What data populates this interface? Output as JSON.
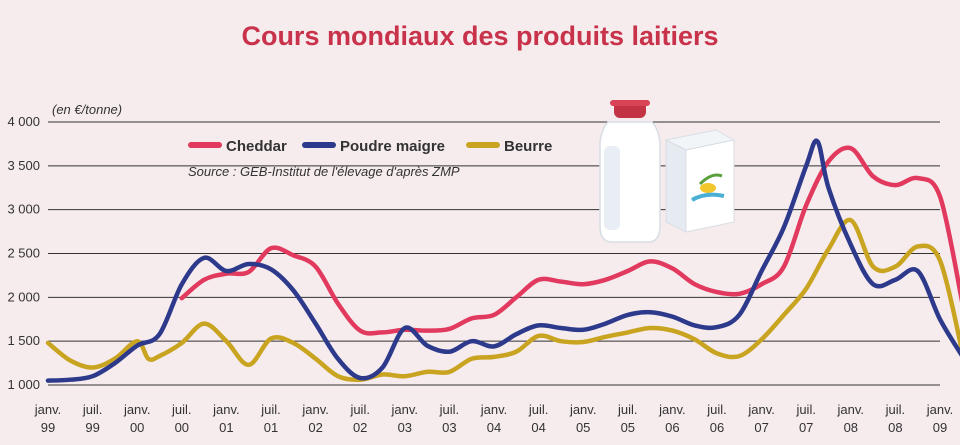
{
  "chart_data": {
    "type": "line",
    "title": "Cours mondiaux des produits laitiers",
    "unit_label": "(en €/tonne)",
    "source": "Source : GEB-Institut de l'élevage d'après ZMP",
    "ylim": [
      1000,
      4000
    ],
    "yticks": [
      {
        "value": 1000,
        "label": "1 000"
      },
      {
        "value": 1500,
        "label": "1 500"
      },
      {
        "value": 2000,
        "label": "2 000"
      },
      {
        "value": 2500,
        "label": "2 500"
      },
      {
        "value": 3000,
        "label": "3 000"
      },
      {
        "value": 3500,
        "label": "3 500"
      },
      {
        "value": 4000,
        "label": "4 000"
      }
    ],
    "xticks": [
      {
        "line1": "janv.",
        "line2": "99"
      },
      {
        "line1": "juil.",
        "line2": "99"
      },
      {
        "line1": "janv.",
        "line2": "00"
      },
      {
        "line1": "juil.",
        "line2": "00"
      },
      {
        "line1": "janv.",
        "line2": "01"
      },
      {
        "line1": "juil.",
        "line2": "01"
      },
      {
        "line1": "janv.",
        "line2": "02"
      },
      {
        "line1": "juil.",
        "line2": "02"
      },
      {
        "line1": "janv.",
        "line2": "03"
      },
      {
        "line1": "juil.",
        "line2": "03"
      },
      {
        "line1": "janv.",
        "line2": "04"
      },
      {
        "line1": "juil.",
        "line2": "04"
      },
      {
        "line1": "janv.",
        "line2": "05"
      },
      {
        "line1": "juil.",
        "line2": "05"
      },
      {
        "line1": "janv.",
        "line2": "06"
      },
      {
        "line1": "juil.",
        "line2": "06"
      },
      {
        "line1": "janv.",
        "line2": "07"
      },
      {
        "line1": "juil.",
        "line2": "07"
      },
      {
        "line1": "janv.",
        "line2": "08"
      },
      {
        "line1": "juil.",
        "line2": "08"
      },
      {
        "line1": "janv.",
        "line2": "09"
      }
    ],
    "grid": "horizontal",
    "legend_position": "top-left",
    "series": [
      {
        "name": "Cheddar",
        "color": "#e23a5e",
        "points": [
          [
            3.0,
            1990
          ],
          [
            3.5,
            2200
          ],
          [
            4.0,
            2270
          ],
          [
            4.5,
            2290
          ],
          [
            5.0,
            2560
          ],
          [
            5.5,
            2480
          ],
          [
            6.0,
            2350
          ],
          [
            6.5,
            1930
          ],
          [
            7.0,
            1620
          ],
          [
            7.5,
            1600
          ],
          [
            8.0,
            1630
          ],
          [
            8.5,
            1620
          ],
          [
            9.0,
            1640
          ],
          [
            9.5,
            1760
          ],
          [
            10.0,
            1800
          ],
          [
            10.5,
            2000
          ],
          [
            11.0,
            2200
          ],
          [
            11.5,
            2180
          ],
          [
            12.0,
            2150
          ],
          [
            12.5,
            2200
          ],
          [
            13.0,
            2300
          ],
          [
            13.5,
            2410
          ],
          [
            14.0,
            2330
          ],
          [
            14.5,
            2150
          ],
          [
            15.0,
            2060
          ],
          [
            15.5,
            2040
          ],
          [
            16.0,
            2150
          ],
          [
            16.5,
            2350
          ],
          [
            17.0,
            3050
          ],
          [
            17.5,
            3550
          ],
          [
            18.0,
            3700
          ],
          [
            18.5,
            3380
          ],
          [
            19.0,
            3280
          ],
          [
            19.5,
            3360
          ],
          [
            20.0,
            3150
          ],
          [
            20.5,
            1940
          ]
        ]
      },
      {
        "name": "Poudre maigre",
        "color": "#2d3a8c",
        "points": [
          [
            0.0,
            1050
          ],
          [
            0.5,
            1060
          ],
          [
            1.0,
            1100
          ],
          [
            1.5,
            1250
          ],
          [
            2.0,
            1450
          ],
          [
            2.5,
            1580
          ],
          [
            3.0,
            2150
          ],
          [
            3.5,
            2450
          ],
          [
            4.0,
            2300
          ],
          [
            4.5,
            2380
          ],
          [
            5.0,
            2320
          ],
          [
            5.5,
            2080
          ],
          [
            6.0,
            1700
          ],
          [
            6.5,
            1300
          ],
          [
            7.0,
            1080
          ],
          [
            7.5,
            1200
          ],
          [
            8.0,
            1650
          ],
          [
            8.5,
            1450
          ],
          [
            9.0,
            1380
          ],
          [
            9.5,
            1500
          ],
          [
            10.0,
            1440
          ],
          [
            10.5,
            1580
          ],
          [
            11.0,
            1680
          ],
          [
            11.5,
            1650
          ],
          [
            12.0,
            1630
          ],
          [
            12.5,
            1700
          ],
          [
            13.0,
            1800
          ],
          [
            13.5,
            1830
          ],
          [
            14.0,
            1780
          ],
          [
            14.5,
            1680
          ],
          [
            15.0,
            1660
          ],
          [
            15.5,
            1800
          ],
          [
            16.0,
            2300
          ],
          [
            16.5,
            2800
          ],
          [
            17.0,
            3500
          ],
          [
            17.25,
            3780
          ],
          [
            17.5,
            3250
          ],
          [
            18.0,
            2600
          ],
          [
            18.5,
            2150
          ],
          [
            19.0,
            2200
          ],
          [
            19.5,
            2300
          ],
          [
            20.0,
            1750
          ],
          [
            20.5,
            1330
          ]
        ]
      },
      {
        "name": "Beurre",
        "color": "#c9a421",
        "points": [
          [
            0.0,
            1480
          ],
          [
            0.5,
            1280
          ],
          [
            1.0,
            1200
          ],
          [
            1.5,
            1300
          ],
          [
            2.0,
            1500
          ],
          [
            2.25,
            1300
          ],
          [
            2.5,
            1330
          ],
          [
            3.0,
            1480
          ],
          [
            3.5,
            1700
          ],
          [
            4.0,
            1500
          ],
          [
            4.5,
            1230
          ],
          [
            5.0,
            1530
          ],
          [
            5.5,
            1480
          ],
          [
            6.0,
            1300
          ],
          [
            6.5,
            1100
          ],
          [
            7.0,
            1060
          ],
          [
            7.5,
            1120
          ],
          [
            8.0,
            1100
          ],
          [
            8.5,
            1150
          ],
          [
            9.0,
            1150
          ],
          [
            9.5,
            1300
          ],
          [
            10.0,
            1320
          ],
          [
            10.5,
            1380
          ],
          [
            11.0,
            1560
          ],
          [
            11.5,
            1500
          ],
          [
            12.0,
            1490
          ],
          [
            12.5,
            1550
          ],
          [
            13.0,
            1600
          ],
          [
            13.5,
            1650
          ],
          [
            14.0,
            1620
          ],
          [
            14.5,
            1520
          ],
          [
            15.0,
            1360
          ],
          [
            15.5,
            1330
          ],
          [
            16.0,
            1520
          ],
          [
            16.5,
            1800
          ],
          [
            17.0,
            2100
          ],
          [
            17.5,
            2550
          ],
          [
            18.0,
            2880
          ],
          [
            18.5,
            2350
          ],
          [
            19.0,
            2350
          ],
          [
            19.5,
            2580
          ],
          [
            20.0,
            2420
          ],
          [
            20.5,
            1380
          ]
        ]
      }
    ]
  }
}
